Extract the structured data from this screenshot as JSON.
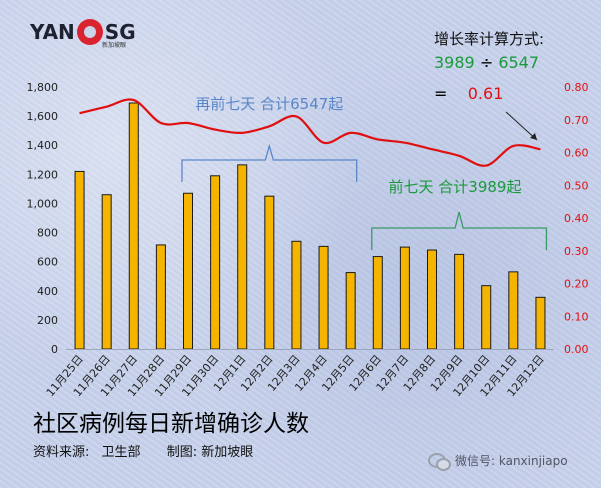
{
  "brand": {
    "logo_left": "YAN",
    "logo_right": "SG",
    "logo_sub": "新加坡眼"
  },
  "calc": {
    "title": "增长率计算方式:",
    "numerator": "3989",
    "divider": "÷",
    "denominator": "6547",
    "equals": "=",
    "result": "0.61"
  },
  "annotations": {
    "prev": "再前七天 合计6547起",
    "last": "前七天 合计3989起"
  },
  "footer": {
    "title": "社区病例每日新增确诊人数",
    "source_label": "资料来源:",
    "source": "卫生部",
    "maker_label": "制图:",
    "maker": "新加坡眼"
  },
  "watermark": "微信号: kanxinjiapo",
  "colors": {
    "bar": "#f5b400",
    "bar_stroke": "#1a1a1a",
    "line": "#e01010",
    "green": "#1a9a3b",
    "bracket": "#5a86c8"
  },
  "chart_data": {
    "type": "bar",
    "categories": [
      "11月25日",
      "11月26日",
      "11月27日",
      "11月28日",
      "11月29日",
      "11月30日",
      "12月1日",
      "12月2日",
      "12月3日",
      "12月4日",
      "12月5日",
      "12月6日",
      "12月7日",
      "12月8日",
      "12月9日",
      "12月10日",
      "12月11日",
      "12月12日"
    ],
    "series": [
      {
        "values": [
          1220,
          1060,
          1690,
          715,
          1070,
          1190,
          1265,
          1050,
          740,
          705,
          525,
          635,
          700,
          680,
          650,
          435,
          530,
          355
        ]
      },
      {
        "axis": "right",
        "values": [
          0.72,
          0.74,
          0.76,
          0.69,
          0.69,
          0.67,
          0.66,
          0.68,
          0.71,
          0.63,
          0.66,
          0.64,
          0.63,
          0.61,
          0.59,
          0.56,
          0.62,
          0.61
        ]
      }
    ],
    "yticks_left": [
      "0",
      "200",
      "400",
      "600",
      "800",
      "1,000",
      "1,200",
      "1,400",
      "1,600",
      "1,800"
    ],
    "yticks_right": [
      "0.00",
      "0.10",
      "0.20",
      "0.30",
      "0.40",
      "0.50",
      "0.60",
      "0.70",
      "0.80"
    ],
    "ylim_left": [
      0,
      1800
    ],
    "ylim_right": [
      0,
      0.8
    ]
  }
}
